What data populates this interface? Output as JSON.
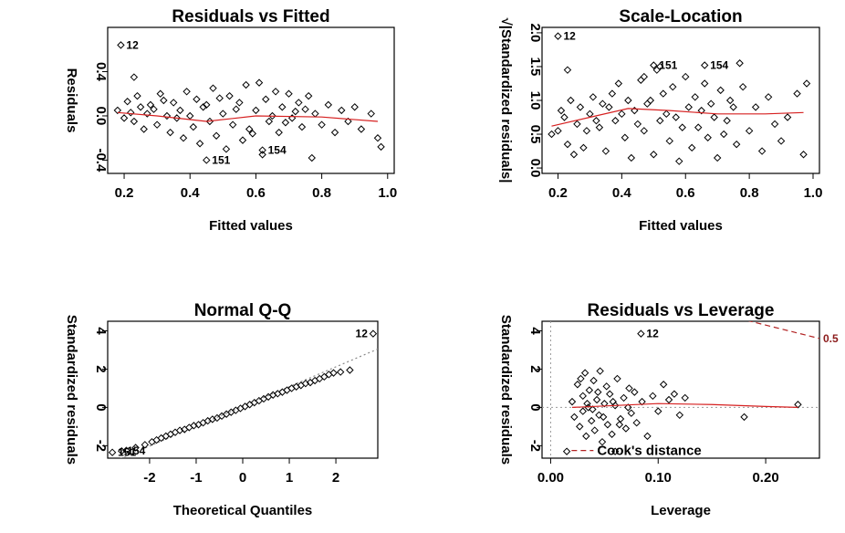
{
  "chart_data": [
    {
      "type": "scatter",
      "title": "Residuals vs Fitted",
      "xlabel": "Fitted values",
      "ylabel": "Residuals",
      "xlim": [
        0.15,
        1.02
      ],
      "ylim": [
        -0.52,
        0.8
      ],
      "xticks": [
        0.2,
        0.4,
        0.6,
        0.8,
        1.0
      ],
      "xtick_labels": [
        "0.2",
        "0.4",
        "0.6",
        "0.8",
        "1.0"
      ],
      "yticks": [
        -0.4,
        0.0,
        0.4
      ],
      "ytick_labels": [
        "-0.4",
        "0.0",
        "0.4"
      ],
      "points": [
        [
          0.18,
          0.05
        ],
        [
          0.2,
          -0.02
        ],
        [
          0.21,
          0.13
        ],
        [
          0.22,
          0.03
        ],
        [
          0.23,
          -0.05
        ],
        [
          0.24,
          0.18
        ],
        [
          0.25,
          0.08
        ],
        [
          0.26,
          -0.12
        ],
        [
          0.27,
          0.02
        ],
        [
          0.28,
          0.1
        ],
        [
          0.3,
          -0.08
        ],
        [
          0.31,
          0.2
        ],
        [
          0.33,
          0.0
        ],
        [
          0.34,
          -0.15
        ],
        [
          0.35,
          0.12
        ],
        [
          0.37,
          0.05
        ],
        [
          0.38,
          -0.2
        ],
        [
          0.39,
          0.22
        ],
        [
          0.41,
          -0.1
        ],
        [
          0.42,
          0.15
        ],
        [
          0.43,
          -0.25
        ],
        [
          0.44,
          0.08
        ],
        [
          0.46,
          -0.05
        ],
        [
          0.47,
          0.25
        ],
        [
          0.48,
          -0.18
        ],
        [
          0.5,
          0.02
        ],
        [
          0.51,
          -0.3
        ],
        [
          0.52,
          0.18
        ],
        [
          0.53,
          -0.08
        ],
        [
          0.55,
          0.12
        ],
        [
          0.56,
          -0.22
        ],
        [
          0.57,
          0.28
        ],
        [
          0.58,
          -0.12
        ],
        [
          0.6,
          0.05
        ],
        [
          0.61,
          0.3
        ],
        [
          0.62,
          -0.35
        ],
        [
          0.63,
          0.15
        ],
        [
          0.64,
          -0.05
        ],
        [
          0.66,
          0.22
        ],
        [
          0.67,
          -0.15
        ],
        [
          0.68,
          0.08
        ],
        [
          0.7,
          0.2
        ],
        [
          0.71,
          -0.02
        ],
        [
          0.73,
          0.12
        ],
        [
          0.74,
          -0.1
        ],
        [
          0.76,
          0.18
        ],
        [
          0.78,
          0.02
        ],
        [
          0.8,
          -0.08
        ],
        [
          0.82,
          0.1
        ],
        [
          0.84,
          -0.15
        ],
        [
          0.86,
          0.05
        ],
        [
          0.88,
          -0.05
        ],
        [
          0.9,
          0.08
        ],
        [
          0.92,
          -0.12
        ],
        [
          0.95,
          0.02
        ],
        [
          0.97,
          -0.2
        ],
        [
          0.45,
          0.1
        ],
        [
          0.36,
          -0.02
        ],
        [
          0.54,
          0.06
        ],
        [
          0.65,
          0.0
        ],
        [
          0.72,
          0.04
        ],
        [
          0.29,
          0.06
        ],
        [
          0.32,
          0.14
        ],
        [
          0.49,
          0.16
        ],
        [
          0.59,
          -0.16
        ],
        [
          0.69,
          -0.06
        ],
        [
          0.75,
          0.06
        ],
        [
          0.4,
          0.0
        ],
        [
          0.23,
          0.35
        ],
        [
          0.77,
          -0.38
        ],
        [
          0.98,
          -0.28
        ]
      ],
      "labeled_points": [
        {
          "label": "12",
          "x": 0.19,
          "y": 0.64
        },
        {
          "label": "151",
          "x": 0.45,
          "y": -0.4
        },
        {
          "label": "154",
          "x": 0.62,
          "y": -0.31
        }
      ],
      "smooth": [
        [
          0.18,
          0.03
        ],
        [
          0.3,
          0.0
        ],
        [
          0.45,
          -0.05
        ],
        [
          0.6,
          0.0
        ],
        [
          0.8,
          -0.01
        ],
        [
          0.97,
          -0.05
        ]
      ]
    },
    {
      "type": "scatter",
      "title": "Scale-Location",
      "xlabel": "Fitted values",
      "ylabel": "√|Standardized residuals|",
      "xlim": [
        0.15,
        1.02
      ],
      "ylim": [
        -0.08,
        2.08
      ],
      "xticks": [
        0.2,
        0.4,
        0.6,
        0.8,
        1.0
      ],
      "xtick_labels": [
        "0.2",
        "0.4",
        "0.6",
        "0.8",
        "1.0"
      ],
      "yticks": [
        0.0,
        0.5,
        1.0,
        1.5,
        2.0
      ],
      "ytick_labels": [
        "0.0",
        "0.5",
        "1.0",
        "1.5",
        "2.0"
      ],
      "points": [
        [
          0.18,
          0.5
        ],
        [
          0.2,
          0.55
        ],
        [
          0.21,
          0.85
        ],
        [
          0.22,
          0.75
        ],
        [
          0.23,
          0.35
        ],
        [
          0.24,
          1.0
        ],
        [
          0.25,
          0.2
        ],
        [
          0.26,
          0.65
        ],
        [
          0.27,
          0.9
        ],
        [
          0.28,
          0.3
        ],
        [
          0.3,
          0.8
        ],
        [
          0.31,
          1.05
        ],
        [
          0.33,
          0.6
        ],
        [
          0.34,
          0.95
        ],
        [
          0.35,
          0.25
        ],
        [
          0.37,
          1.1
        ],
        [
          0.38,
          0.7
        ],
        [
          0.39,
          1.25
        ],
        [
          0.41,
          0.45
        ],
        [
          0.42,
          1.0
        ],
        [
          0.43,
          0.15
        ],
        [
          0.44,
          0.85
        ],
        [
          0.46,
          1.3
        ],
        [
          0.47,
          0.55
        ],
        [
          0.48,
          0.95
        ],
        [
          0.5,
          0.2
        ],
        [
          0.51,
          1.45
        ],
        [
          0.52,
          0.7
        ],
        [
          0.53,
          1.1
        ],
        [
          0.55,
          0.4
        ],
        [
          0.56,
          1.2
        ],
        [
          0.57,
          0.75
        ],
        [
          0.58,
          0.1
        ],
        [
          0.6,
          1.35
        ],
        [
          0.61,
          0.9
        ],
        [
          0.62,
          0.3
        ],
        [
          0.63,
          1.05
        ],
        [
          0.64,
          0.6
        ],
        [
          0.66,
          1.25
        ],
        [
          0.67,
          0.45
        ],
        [
          0.68,
          0.95
        ],
        [
          0.7,
          0.15
        ],
        [
          0.71,
          1.15
        ],
        [
          0.73,
          0.7
        ],
        [
          0.74,
          1.0
        ],
        [
          0.76,
          0.35
        ],
        [
          0.78,
          1.2
        ],
        [
          0.8,
          0.55
        ],
        [
          0.82,
          0.9
        ],
        [
          0.84,
          0.25
        ],
        [
          0.86,
          1.05
        ],
        [
          0.88,
          0.65
        ],
        [
          0.9,
          0.4
        ],
        [
          0.92,
          0.75
        ],
        [
          0.95,
          1.1
        ],
        [
          0.97,
          0.2
        ],
        [
          0.98,
          1.25
        ],
        [
          0.45,
          0.65
        ],
        [
          0.36,
          0.9
        ],
        [
          0.54,
          0.8
        ],
        [
          0.65,
          0.85
        ],
        [
          0.72,
          0.5
        ],
        [
          0.29,
          0.55
        ],
        [
          0.32,
          0.7
        ],
        [
          0.49,
          1.0
        ],
        [
          0.59,
          0.6
        ],
        [
          0.69,
          0.75
        ],
        [
          0.75,
          0.9
        ],
        [
          0.4,
          0.8
        ],
        [
          0.23,
          1.45
        ],
        [
          0.77,
          1.55
        ],
        [
          0.52,
          1.5
        ],
        [
          0.47,
          1.35
        ]
      ],
      "labeled_points": [
        {
          "label": "12",
          "x": 0.2,
          "y": 1.95
        },
        {
          "label": "151",
          "x": 0.5,
          "y": 1.52
        },
        {
          "label": "154",
          "x": 0.66,
          "y": 1.52
        }
      ],
      "smooth": [
        [
          0.18,
          0.62
        ],
        [
          0.3,
          0.75
        ],
        [
          0.42,
          0.88
        ],
        [
          0.55,
          0.85
        ],
        [
          0.7,
          0.8
        ],
        [
          0.85,
          0.8
        ],
        [
          0.97,
          0.82
        ]
      ]
    },
    {
      "type": "scatter",
      "title": "Normal Q-Q",
      "xlabel": "Theoretical Quantiles",
      "ylabel": "Standardized residuals",
      "xlim": [
        -2.9,
        2.9
      ],
      "ylim": [
        -2.65,
        4.5
      ],
      "xticks": [
        -2,
        -1,
        0,
        1,
        2
      ],
      "xtick_labels": [
        "-2",
        "-1",
        "0",
        "1",
        "2"
      ],
      "yticks": [
        -2,
        0,
        2,
        4
      ],
      "ytick_labels": [
        "-2",
        "0",
        "2",
        "4"
      ],
      "points": [
        [
          -2.1,
          -1.95
        ],
        [
          -1.95,
          -1.8
        ],
        [
          -1.85,
          -1.7
        ],
        [
          -1.75,
          -1.6
        ],
        [
          -1.65,
          -1.5
        ],
        [
          -1.55,
          -1.4
        ],
        [
          -1.45,
          -1.3
        ],
        [
          -1.35,
          -1.2
        ],
        [
          -1.25,
          -1.15
        ],
        [
          -1.15,
          -1.05
        ],
        [
          -1.05,
          -0.95
        ],
        [
          -0.95,
          -0.9
        ],
        [
          -0.85,
          -0.8
        ],
        [
          -0.75,
          -0.7
        ],
        [
          -0.65,
          -0.62
        ],
        [
          -0.55,
          -0.55
        ],
        [
          -0.45,
          -0.45
        ],
        [
          -0.35,
          -0.35
        ],
        [
          -0.25,
          -0.25
        ],
        [
          -0.15,
          -0.15
        ],
        [
          -0.05,
          -0.05
        ],
        [
          0.05,
          0.05
        ],
        [
          0.15,
          0.15
        ],
        [
          0.25,
          0.25
        ],
        [
          0.35,
          0.35
        ],
        [
          0.45,
          0.45
        ],
        [
          0.55,
          0.55
        ],
        [
          0.65,
          0.65
        ],
        [
          0.75,
          0.72
        ],
        [
          0.85,
          0.8
        ],
        [
          0.95,
          0.9
        ],
        [
          1.05,
          1.0
        ],
        [
          1.15,
          1.08
        ],
        [
          1.25,
          1.15
        ],
        [
          1.35,
          1.25
        ],
        [
          1.45,
          1.3
        ],
        [
          1.55,
          1.4
        ],
        [
          1.65,
          1.5
        ],
        [
          1.75,
          1.6
        ],
        [
          1.85,
          1.72
        ],
        [
          1.95,
          1.8
        ],
        [
          2.1,
          1.85
        ],
        [
          2.3,
          1.95
        ],
        [
          -2.3,
          -2.1
        ],
        [
          -2.5,
          -2.25
        ]
      ],
      "labeled_points": [
        {
          "label": "12",
          "x": 2.8,
          "y": 3.85
        },
        {
          "label": "151",
          "x": -2.8,
          "y": -2.35
        },
        {
          "label": "154",
          "x": -2.6,
          "y": -2.28
        }
      ],
      "ref_line": [
        [
          -2.9,
          -2.95
        ],
        [
          2.9,
          3.05
        ]
      ]
    },
    {
      "type": "scatter",
      "title": "Residuals vs Leverage",
      "xlabel": "Leverage",
      "ylabel": "Standardized residuals",
      "xlim": [
        -0.008,
        0.25
      ],
      "ylim": [
        -2.65,
        4.5
      ],
      "xticks": [
        0.0,
        0.1,
        0.2
      ],
      "xtick_labels": [
        "0.00",
        "0.10",
        "0.20"
      ],
      "yticks": [
        -2,
        0,
        2,
        4
      ],
      "ytick_labels": [
        "-2",
        "0",
        "2",
        "4"
      ],
      "points": [
        [
          0.02,
          0.3
        ],
        [
          0.022,
          -0.5
        ],
        [
          0.025,
          1.2
        ],
        [
          0.027,
          -1.0
        ],
        [
          0.03,
          0.6
        ],
        [
          0.03,
          -0.2
        ],
        [
          0.032,
          1.8
        ],
        [
          0.033,
          -1.5
        ],
        [
          0.035,
          0.0
        ],
        [
          0.036,
          0.9
        ],
        [
          0.038,
          -0.7
        ],
        [
          0.04,
          1.4
        ],
        [
          0.041,
          -1.2
        ],
        [
          0.043,
          0.4
        ],
        [
          0.045,
          -0.4
        ],
        [
          0.046,
          1.9
        ],
        [
          0.048,
          -1.8
        ],
        [
          0.05,
          0.2
        ],
        [
          0.052,
          1.1
        ],
        [
          0.053,
          -0.9
        ],
        [
          0.055,
          0.7
        ],
        [
          0.057,
          -1.4
        ],
        [
          0.06,
          0.1
        ],
        [
          0.062,
          1.5
        ],
        [
          0.065,
          -0.6
        ],
        [
          0.068,
          0.5
        ],
        [
          0.07,
          -1.1
        ],
        [
          0.073,
          1.0
        ],
        [
          0.075,
          -0.3
        ],
        [
          0.078,
          0.8
        ],
        [
          0.08,
          -0.8
        ],
        [
          0.085,
          0.3
        ],
        [
          0.09,
          -1.5
        ],
        [
          0.095,
          0.6
        ],
        [
          0.1,
          -0.2
        ],
        [
          0.105,
          1.2
        ],
        [
          0.11,
          0.4
        ],
        [
          0.115,
          0.7
        ],
        [
          0.12,
          -0.4
        ],
        [
          0.125,
          0.5
        ],
        [
          0.18,
          -0.5
        ],
        [
          0.23,
          0.15
        ],
        [
          0.028,
          1.5
        ],
        [
          0.034,
          0.2
        ],
        [
          0.039,
          -0.1
        ],
        [
          0.044,
          0.8
        ],
        [
          0.049,
          -0.5
        ],
        [
          0.058,
          0.3
        ],
        [
          0.064,
          -0.9
        ],
        [
          0.072,
          0.0
        ],
        [
          0.06,
          -2.3
        ],
        [
          0.015,
          -2.3
        ]
      ],
      "labeled_points": [
        {
          "label": "12",
          "x": 0.084,
          "y": 3.85
        }
      ],
      "smooth": [
        [
          0.02,
          0.0
        ],
        [
          0.06,
          0.1
        ],
        [
          0.1,
          0.2
        ],
        [
          0.15,
          0.15
        ],
        [
          0.2,
          0.05
        ],
        [
          0.23,
          0.0
        ]
      ],
      "cook_label": "0.5",
      "cook_curve": [
        [
          0.1,
          5.6
        ],
        [
          0.15,
          5.0
        ],
        [
          0.2,
          4.3
        ],
        [
          0.25,
          3.6
        ]
      ],
      "legend_text": "Cook's distance"
    }
  ]
}
